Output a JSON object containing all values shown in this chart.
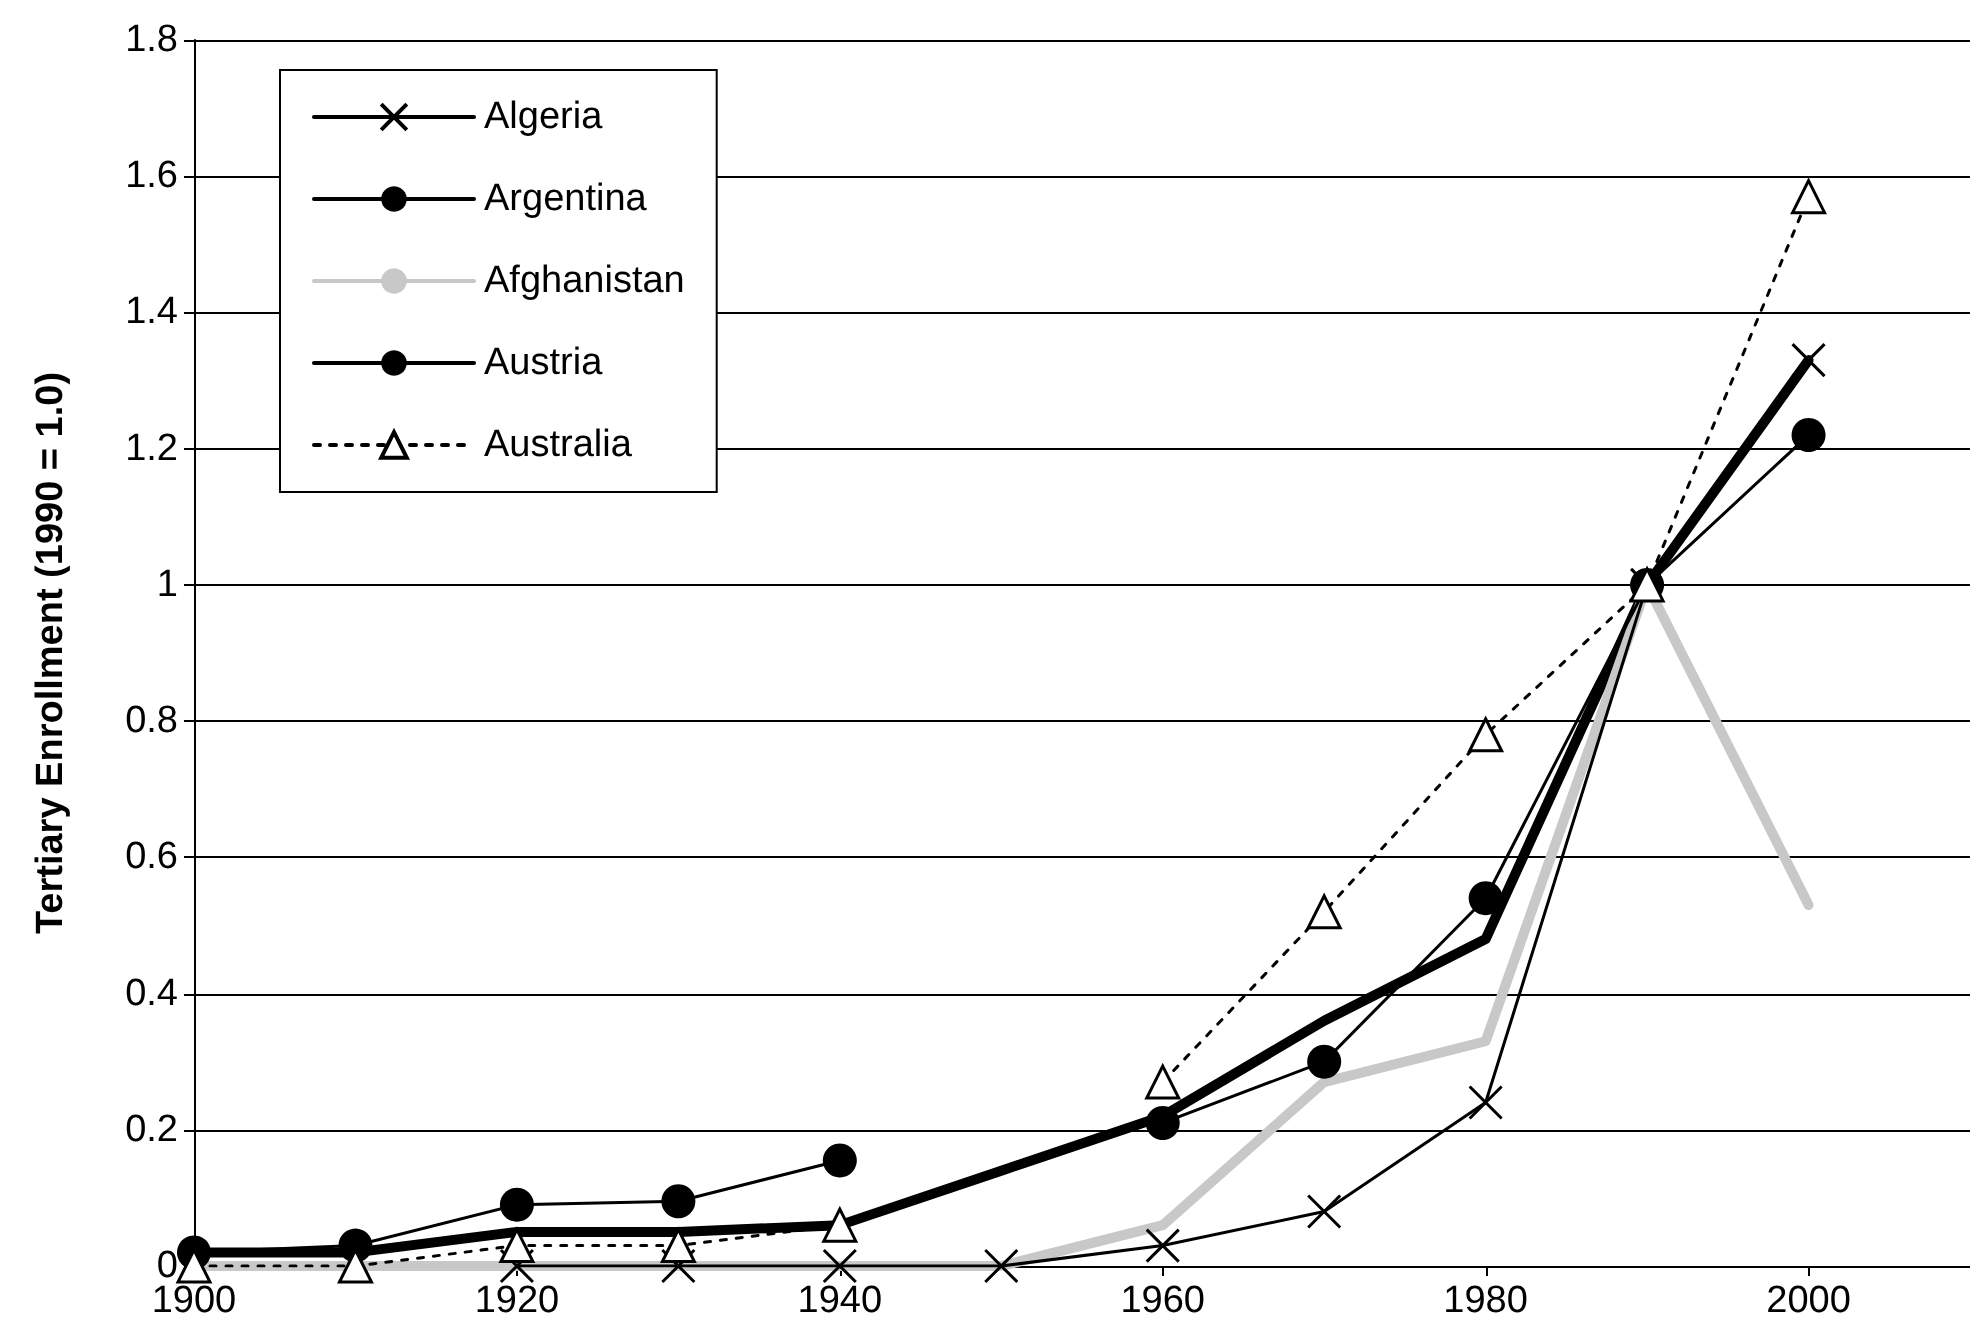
{
  "chart_data": {
    "type": "line",
    "ylabel": "Tertiary Enrollment (1990 = 1.0)",
    "x": [
      1900,
      1910,
      1920,
      1930,
      1940,
      1950,
      1960,
      1970,
      1980,
      1990,
      2000
    ],
    "xlim": [
      1900,
      2010
    ],
    "xticks": [
      1900,
      1920,
      1940,
      1960,
      1980,
      2000
    ],
    "ylim": [
      0,
      1.8
    ],
    "yticks": [
      0,
      0.2,
      0.4,
      0.6,
      0.8,
      1,
      1.2,
      1.4,
      1.6,
      1.8
    ],
    "grid": "y",
    "legend": "top left",
    "series": [
      {
        "name": "Algeria",
        "color": "#000000",
        "marker": "cross",
        "line_style": "solid",
        "values": [
          null,
          null,
          0,
          0,
          0,
          0,
          0.03,
          0.08,
          0.24,
          1,
          1.33
        ]
      },
      {
        "name": "Argentina",
        "color": "#000000",
        "marker": "none",
        "line_style": "solid",
        "values": [
          0.02,
          0.02,
          0.05,
          0.05,
          0.06,
          0.14,
          0.22,
          0.36,
          0.48,
          1,
          1.33
        ]
      },
      {
        "name": "Afghanistan",
        "color": "#c8c8c8",
        "marker": "none",
        "line_style": "solid",
        "values": [
          0,
          0,
          0,
          0,
          0,
          0,
          0.06,
          0.27,
          0.33,
          1,
          0.53
        ]
      },
      {
        "name": "Austria",
        "color": "#000000",
        "marker": "circle",
        "line_style": "solid",
        "values": [
          0.02,
          0.03,
          0.09,
          0.095,
          0.155,
          null,
          0.21,
          0.3,
          0.54,
          1,
          1.22
        ]
      },
      {
        "name": "Australia",
        "color": "#000000",
        "marker": "triangle",
        "line_style": "dotted",
        "values": [
          0,
          0,
          0.03,
          0.03,
          0.06,
          null,
          0.27,
          0.52,
          0.78,
          1,
          1.57
        ]
      }
    ]
  }
}
